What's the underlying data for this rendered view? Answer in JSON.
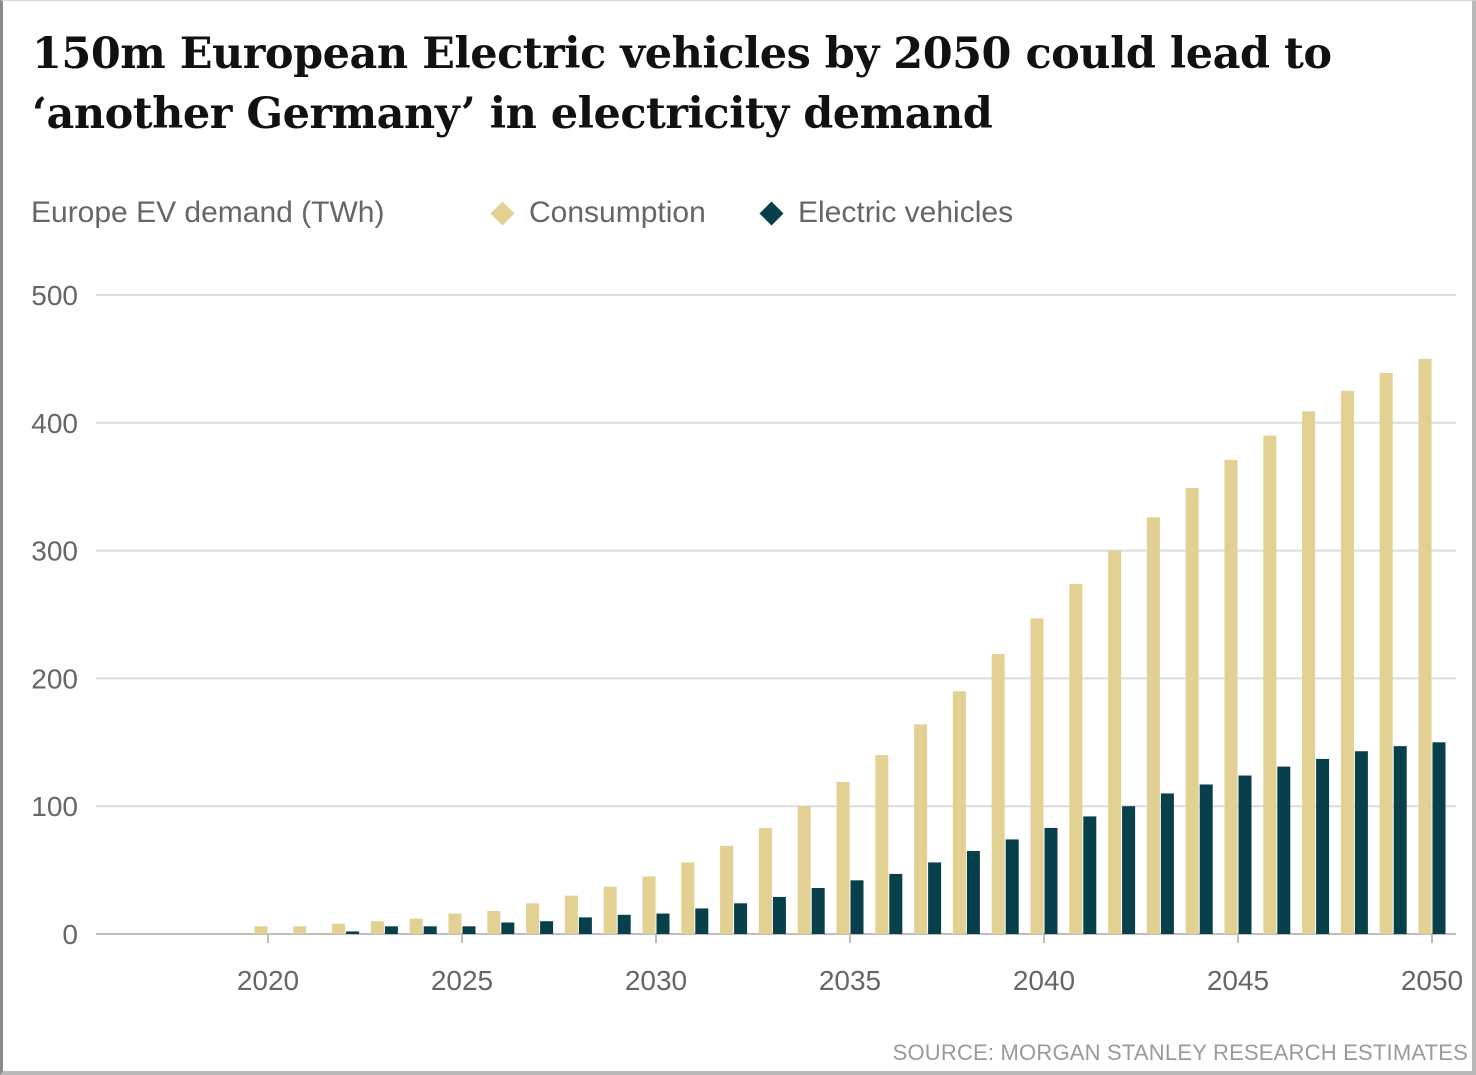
{
  "title_lines": [
    "150m European Electric vehicles by 2050 could lead to",
    "‘another Germany’ in electricity demand"
  ],
  "source": "SOURCE: MORGAN STANLEY RESEARCH ESTIMATES",
  "colors": {
    "consumption": "#e3d194",
    "electric_vehicles": "#073f4b",
    "grid": "#dcdcdc",
    "text": "#666666"
  },
  "chart_data": {
    "type": "bar",
    "title": "150m European Electric vehicles by 2050 could lead to ‘another Germany’ in electricity demand",
    "ylabel": "Europe EV demand (TWh)",
    "xlabel": "",
    "ylim": [
      0,
      500
    ],
    "yticks": [
      0,
      100,
      200,
      300,
      400,
      500
    ],
    "xticks": [
      2020,
      2025,
      2030,
      2035,
      2040,
      2045,
      2050
    ],
    "x_range": [
      2016,
      2050
    ],
    "grid": true,
    "legend_position": "top",
    "categories": [
      2020,
      2021,
      2022,
      2023,
      2024,
      2025,
      2026,
      2027,
      2028,
      2029,
      2030,
      2031,
      2032,
      2033,
      2034,
      2035,
      2036,
      2037,
      2038,
      2039,
      2040,
      2041,
      2042,
      2043,
      2044,
      2045,
      2046,
      2047,
      2048,
      2049,
      2050
    ],
    "series": [
      {
        "name": "Consumption",
        "values": [
          6,
          6,
          8,
          10,
          12,
          16,
          18,
          24,
          30,
          37,
          45,
          56,
          69,
          83,
          100,
          119,
          140,
          164,
          190,
          219,
          247,
          274,
          300,
          326,
          349,
          371,
          390,
          409,
          425,
          439,
          450
        ]
      },
      {
        "name": "Electric vehicles",
        "values": [
          0,
          0,
          2,
          6,
          6,
          6,
          9,
          10,
          13,
          15,
          16,
          20,
          24,
          29,
          36,
          42,
          47,
          56,
          65,
          74,
          83,
          92,
          100,
          110,
          117,
          124,
          131,
          137,
          143,
          147,
          150
        ]
      }
    ]
  }
}
